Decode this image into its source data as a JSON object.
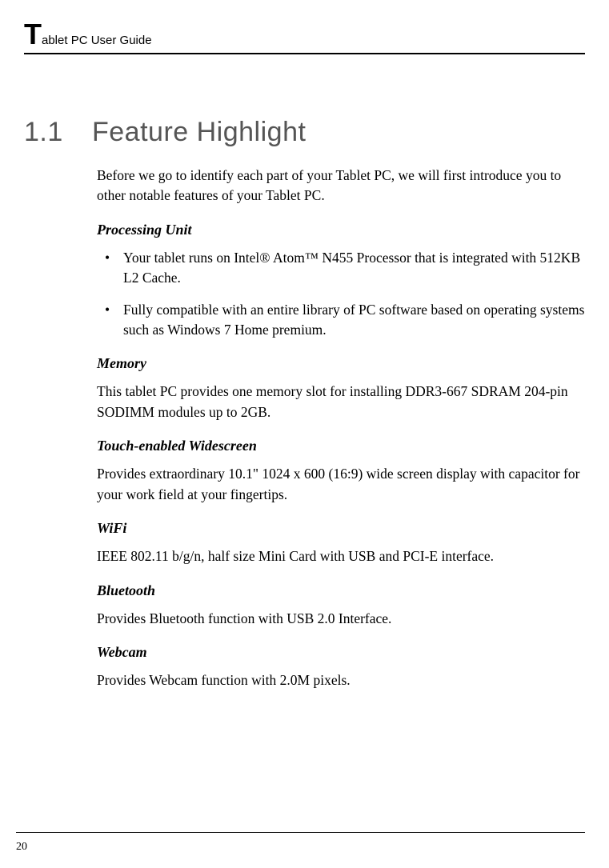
{
  "header": {
    "dropcap": "T",
    "rest": "ablet PC User Guide"
  },
  "section": {
    "number": "1.1",
    "title": "Feature Highlight"
  },
  "intro": "Before we go to identify each part of your Tablet PC, we will first introduce you to other notable features of your Tablet PC.",
  "subsections": {
    "processing": {
      "heading": "Processing Unit",
      "bullets": [
        "Your tablet runs on Intel® Atom™ N455 Processor that is integrated with 512KB L2 Cache.",
        "Fully compatible with an entire library of PC software based on operating systems such as Windows 7 Home premium."
      ]
    },
    "memory": {
      "heading": "Memory",
      "body": "This tablet PC provides one memory slot for installing DDR3-667 SDRAM 204-pin SODIMM modules up to 2GB."
    },
    "widescreen": {
      "heading": "Touch-enabled Widescreen",
      "body": "Provides extraordinary 10.1\" 1024 x 600 (16:9) wide screen display with capacitor for your work field at your fingertips."
    },
    "wifi": {
      "heading": "WiFi",
      "body": "IEEE 802.11 b/g/n, half size Mini Card with USB and PCI-E interface."
    },
    "bluetooth": {
      "heading": "Bluetooth",
      "body": "Provides Bluetooth function with USB 2.0 Interface."
    },
    "webcam": {
      "heading": "Webcam",
      "body": "Provides Webcam function with 2.0M pixels."
    }
  },
  "page_number": "20"
}
